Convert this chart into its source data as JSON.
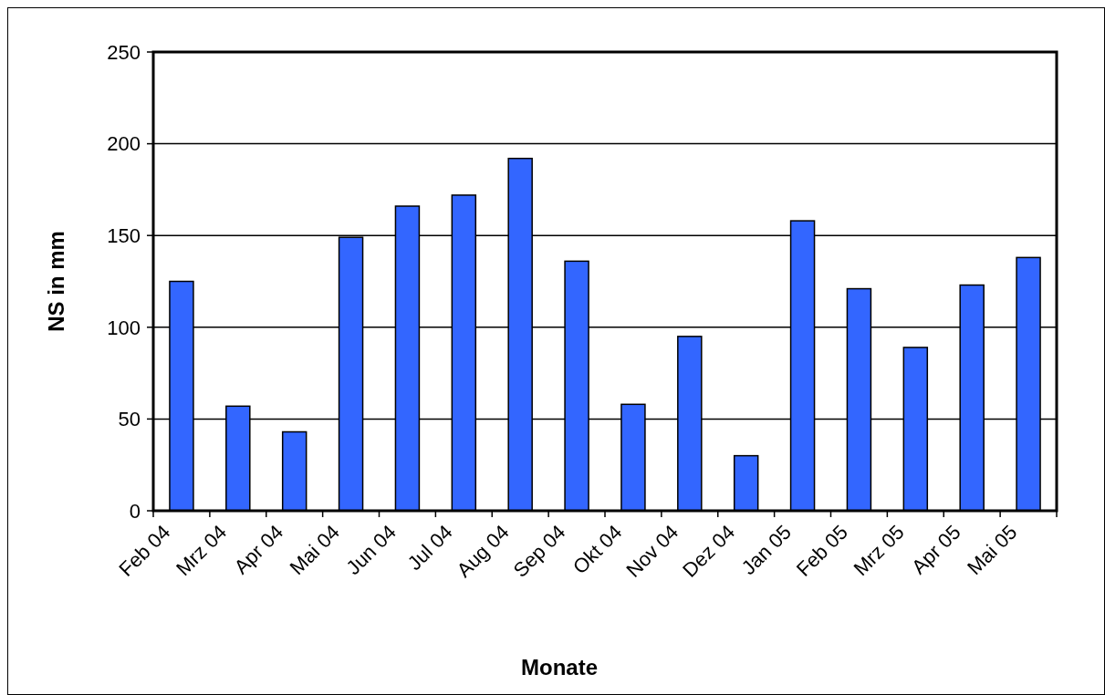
{
  "chart_data": {
    "type": "bar",
    "xlabel": "Monate",
    "ylabel": "NS in mm",
    "categories": [
      "Feb 04",
      "Mrz 04",
      "Apr 04",
      "Mai 04",
      "Jun 04",
      "Jul 04",
      "Aug 04",
      "Sep 04",
      "Okt 04",
      "Nov 04",
      "Dez 04",
      "Jan 05",
      "Feb 05",
      "Mrz 05",
      "Apr 05",
      "Mai 05"
    ],
    "values": [
      125,
      57,
      43,
      149,
      166,
      172,
      192,
      136,
      58,
      95,
      30,
      158,
      121,
      89,
      123,
      138
    ],
    "color": "#3366ff",
    "ylim": [
      0,
      250
    ],
    "yticks": [
      0,
      50,
      100,
      150,
      200,
      250
    ],
    "grid": "y"
  }
}
